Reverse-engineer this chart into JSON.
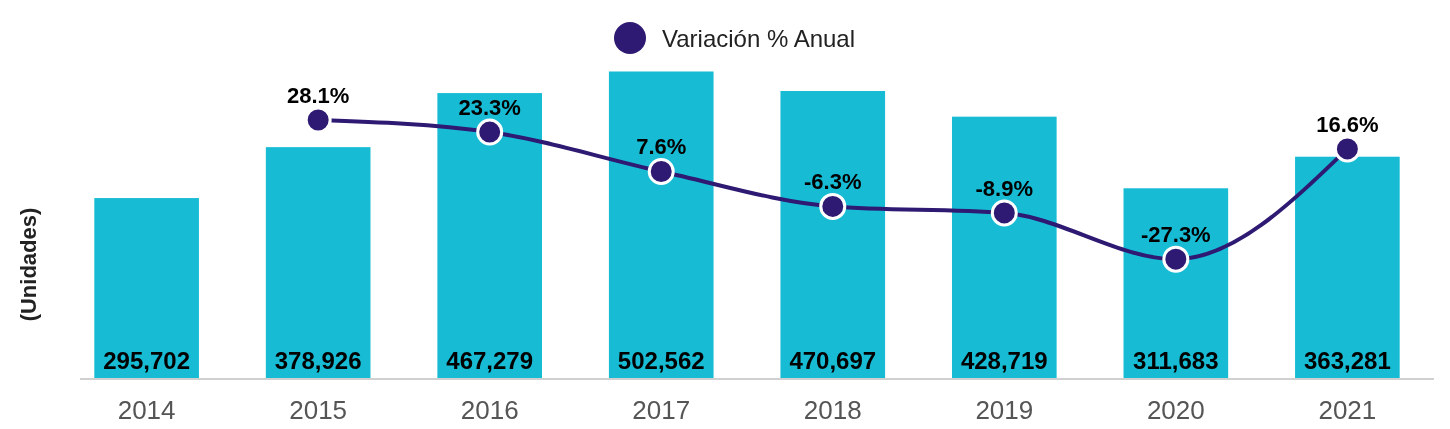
{
  "chart_data": {
    "type": "bar",
    "ylabel": "(Unidades)",
    "categories": [
      "2014",
      "2015",
      "2016",
      "2017",
      "2018",
      "2019",
      "2020",
      "2021"
    ],
    "ylim": [
      0,
      505000
    ],
    "y2lim": [
      -75,
      48
    ],
    "tick_labels": "x",
    "legend": "top",
    "series": [
      {
        "color": "#17bcd4",
        "values": [
          295702,
          378926,
          467279,
          502562,
          470697,
          428719,
          311683,
          363281
        ],
        "value_labels": [
          "295,702",
          "378,926",
          "467,279",
          "502,562",
          "470,697",
          "428,719",
          "311,683",
          "363,281"
        ]
      },
      {
        "type": "line",
        "name": "Variación % Anual",
        "axis": "y2",
        "color": "#2e1a72",
        "marker": "circle",
        "values": [
          null,
          28.1,
          23.3,
          7.6,
          -6.3,
          -8.9,
          -27.3,
          16.6
        ],
        "value_labels": [
          null,
          "28.1%",
          "23.3%",
          "7.6%",
          "-6.3%",
          "-8.9%",
          "-27.3%",
          "16.6%"
        ]
      }
    ]
  }
}
